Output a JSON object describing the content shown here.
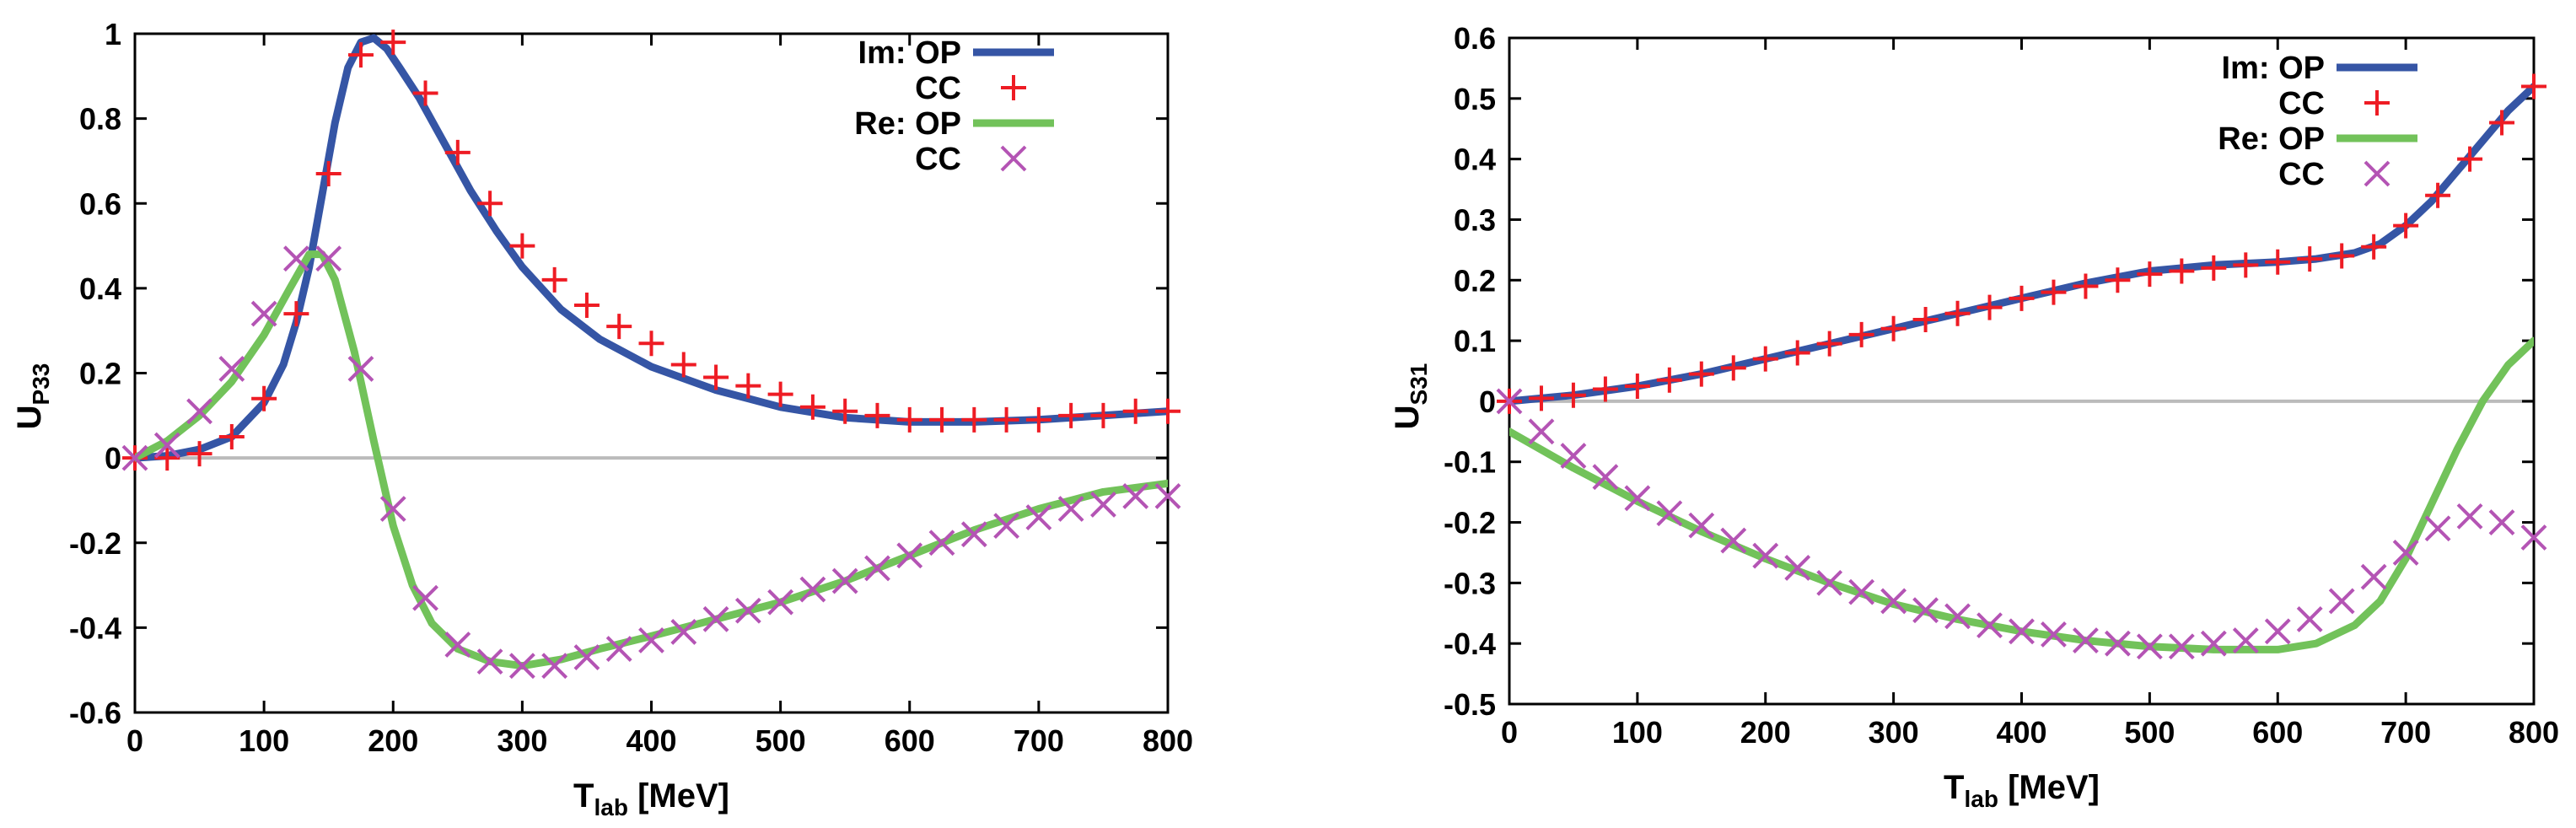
{
  "colors": {
    "im_op": "#3555A5",
    "im_cc": "#EE1C24",
    "re_op": "#72C25A",
    "re_cc": "#B454B4",
    "zero_line": "#BBBBBB",
    "frame": "#000000"
  },
  "chart_data": [
    {
      "type": "line",
      "ylabel_main": "U",
      "ylabel_sub": "P33",
      "xlabel_main": "T",
      "xlabel_sub": "lab",
      "xlabel_rest": " [MeV]",
      "xlim": [
        0,
        800
      ],
      "ylim": [
        -0.6,
        1.0
      ],
      "xticks": [
        0,
        100,
        200,
        300,
        400,
        500,
        600,
        700,
        800
      ],
      "xtick_labels": [
        "0",
        "100",
        "200",
        "300",
        "400",
        "500",
        "600",
        "700",
        "800"
      ],
      "yticks": [
        -0.6,
        -0.4,
        -0.2,
        0,
        0.2,
        0.4,
        0.6,
        0.8,
        1.0
      ],
      "ytick_labels": [
        "-0.6",
        "-0.4",
        "-0.2",
        "0",
        "0.2",
        "0.4",
        "0.6",
        "0.8",
        "1"
      ],
      "legend": {
        "position": "top-right",
        "entries": [
          {
            "group": "Im:",
            "label": "OP",
            "series": "Im OP"
          },
          {
            "group": "",
            "label": "CC",
            "series": "Im CC"
          },
          {
            "group": "Re:",
            "label": "OP",
            "series": "Re OP"
          },
          {
            "group": "",
            "label": "CC",
            "series": "Re CC"
          }
        ]
      },
      "series": [
        {
          "name": "Im OP",
          "style": "line",
          "color_key": "im_op",
          "x": [
            0,
            25,
            50,
            75,
            100,
            115,
            125,
            135,
            145,
            155,
            165,
            175,
            185,
            195,
            205,
            220,
            240,
            260,
            280,
            300,
            330,
            360,
            400,
            450,
            500,
            550,
            600,
            650,
            700,
            750,
            800
          ],
          "y": [
            0,
            0.005,
            0.02,
            0.05,
            0.13,
            0.22,
            0.32,
            0.45,
            0.62,
            0.79,
            0.92,
            0.98,
            0.99,
            0.965,
            0.92,
            0.85,
            0.74,
            0.63,
            0.535,
            0.45,
            0.35,
            0.28,
            0.215,
            0.16,
            0.12,
            0.095,
            0.085,
            0.085,
            0.09,
            0.1,
            0.11
          ]
        },
        {
          "name": "Im CC",
          "style": "plus",
          "color_key": "im_cc",
          "x": [
            0,
            25,
            50,
            75,
            100,
            125,
            150,
            175,
            200,
            225,
            250,
            275,
            300,
            325,
            350,
            375,
            400,
            425,
            450,
            475,
            500,
            525,
            550,
            575,
            600,
            625,
            650,
            675,
            700,
            725,
            750,
            775,
            800
          ],
          "y": [
            0,
            0,
            0.01,
            0.05,
            0.14,
            0.34,
            0.67,
            0.95,
            0.98,
            0.86,
            0.72,
            0.6,
            0.5,
            0.42,
            0.36,
            0.31,
            0.27,
            0.22,
            0.19,
            0.17,
            0.15,
            0.12,
            0.11,
            0.1,
            0.09,
            0.09,
            0.09,
            0.09,
            0.09,
            0.1,
            0.1,
            0.11,
            0.11
          ]
        },
        {
          "name": "Re OP",
          "style": "line",
          "color_key": "re_op",
          "x": [
            0,
            25,
            50,
            75,
            100,
            120,
            135,
            145,
            155,
            170,
            185,
            200,
            215,
            230,
            250,
            275,
            300,
            330,
            360,
            400,
            450,
            500,
            550,
            600,
            650,
            700,
            750,
            800
          ],
          "y": [
            0,
            0.04,
            0.1,
            0.18,
            0.29,
            0.4,
            0.48,
            0.48,
            0.42,
            0.25,
            0.04,
            -0.16,
            -0.3,
            -0.39,
            -0.45,
            -0.48,
            -0.49,
            -0.475,
            -0.45,
            -0.42,
            -0.38,
            -0.34,
            -0.29,
            -0.23,
            -0.17,
            -0.12,
            -0.08,
            -0.06
          ]
        },
        {
          "name": "Re CC",
          "style": "cross",
          "color_key": "re_cc",
          "x": [
            0,
            25,
            50,
            75,
            100,
            125,
            150,
            175,
            200,
            225,
            250,
            275,
            300,
            325,
            350,
            375,
            400,
            425,
            450,
            475,
            500,
            525,
            550,
            575,
            600,
            625,
            650,
            675,
            700,
            725,
            750,
            775,
            800
          ],
          "y": [
            0,
            0.03,
            0.11,
            0.21,
            0.34,
            0.47,
            0.47,
            0.21,
            -0.12,
            -0.33,
            -0.44,
            -0.48,
            -0.49,
            -0.49,
            -0.47,
            -0.45,
            -0.43,
            -0.41,
            -0.38,
            -0.36,
            -0.34,
            -0.31,
            -0.29,
            -0.26,
            -0.23,
            -0.2,
            -0.18,
            -0.16,
            -0.14,
            -0.12,
            -0.11,
            -0.09,
            -0.09
          ]
        }
      ]
    },
    {
      "type": "line",
      "ylabel_main": "U",
      "ylabel_sub": "S31",
      "xlabel_main": "T",
      "xlabel_sub": "lab",
      "xlabel_rest": " [MeV]",
      "xlim": [
        0,
        800
      ],
      "ylim": [
        -0.5,
        0.6
      ],
      "xticks": [
        0,
        100,
        200,
        300,
        400,
        500,
        600,
        700,
        800
      ],
      "xtick_labels": [
        "0",
        "100",
        "200",
        "300",
        "400",
        "500",
        "600",
        "700",
        "800"
      ],
      "yticks": [
        -0.5,
        -0.4,
        -0.3,
        -0.2,
        -0.1,
        0,
        0.1,
        0.2,
        0.3,
        0.4,
        0.5,
        0.6
      ],
      "ytick_labels": [
        "-0.5",
        "-0.4",
        "-0.3",
        "-0.2",
        "-0.1",
        "0",
        "0.1",
        "0.2",
        "0.3",
        "0.4",
        "0.5",
        "0.6"
      ],
      "legend": {
        "position": "top-right",
        "entries": [
          {
            "group": "Im:",
            "label": "OP",
            "series": "Im OP"
          },
          {
            "group": "",
            "label": "CC",
            "series": "Im CC"
          },
          {
            "group": "Re:",
            "label": "OP",
            "series": "Re OP"
          },
          {
            "group": "",
            "label": "CC",
            "series": "Re CC"
          }
        ]
      },
      "series": [
        {
          "name": "Im OP",
          "style": "line",
          "color_key": "im_op",
          "x": [
            0,
            50,
            100,
            150,
            200,
            250,
            300,
            350,
            400,
            450,
            500,
            550,
            600,
            630,
            660,
            680,
            700,
            720,
            740,
            760,
            780,
            800
          ],
          "y": [
            0,
            0.01,
            0.025,
            0.045,
            0.07,
            0.095,
            0.12,
            0.145,
            0.17,
            0.195,
            0.215,
            0.225,
            0.23,
            0.235,
            0.245,
            0.26,
            0.29,
            0.33,
            0.38,
            0.43,
            0.48,
            0.52
          ]
        },
        {
          "name": "Im CC",
          "style": "plus",
          "color_key": "im_cc",
          "x": [
            0,
            25,
            50,
            75,
            100,
            125,
            150,
            175,
            200,
            225,
            250,
            275,
            300,
            325,
            350,
            375,
            400,
            425,
            450,
            475,
            500,
            525,
            550,
            575,
            600,
            625,
            650,
            675,
            700,
            725,
            750,
            775,
            800
          ],
          "y": [
            0,
            0.005,
            0.01,
            0.02,
            0.025,
            0.035,
            0.045,
            0.055,
            0.07,
            0.08,
            0.095,
            0.11,
            0.12,
            0.135,
            0.145,
            0.155,
            0.17,
            0.18,
            0.19,
            0.2,
            0.21,
            0.215,
            0.22,
            0.225,
            0.23,
            0.235,
            0.24,
            0.255,
            0.29,
            0.34,
            0.4,
            0.46,
            0.52
          ]
        },
        {
          "name": "Re OP",
          "style": "line",
          "color_key": "re_op",
          "x": [
            0,
            50,
            100,
            150,
            200,
            250,
            300,
            350,
            400,
            450,
            500,
            550,
            600,
            630,
            660,
            680,
            700,
            720,
            740,
            760,
            780,
            800
          ],
          "y": [
            -0.05,
            -0.11,
            -0.165,
            -0.215,
            -0.26,
            -0.3,
            -0.335,
            -0.36,
            -0.38,
            -0.395,
            -0.405,
            -0.41,
            -0.41,
            -0.4,
            -0.37,
            -0.33,
            -0.26,
            -0.17,
            -0.08,
            0,
            0.06,
            0.1
          ]
        },
        {
          "name": "Re CC",
          "style": "cross",
          "color_key": "re_cc",
          "x": [
            0,
            25,
            50,
            75,
            100,
            125,
            150,
            175,
            200,
            225,
            250,
            275,
            300,
            325,
            350,
            375,
            400,
            425,
            450,
            475,
            500,
            525,
            550,
            575,
            600,
            625,
            650,
            675,
            700,
            725,
            750,
            775,
            800
          ],
          "y": [
            0,
            -0.05,
            -0.09,
            -0.125,
            -0.16,
            -0.185,
            -0.205,
            -0.23,
            -0.255,
            -0.275,
            -0.3,
            -0.315,
            -0.33,
            -0.345,
            -0.355,
            -0.37,
            -0.38,
            -0.385,
            -0.395,
            -0.4,
            -0.405,
            -0.405,
            -0.4,
            -0.395,
            -0.38,
            -0.36,
            -0.33,
            -0.29,
            -0.25,
            -0.21,
            -0.19,
            -0.2,
            -0.225
          ]
        }
      ]
    }
  ]
}
